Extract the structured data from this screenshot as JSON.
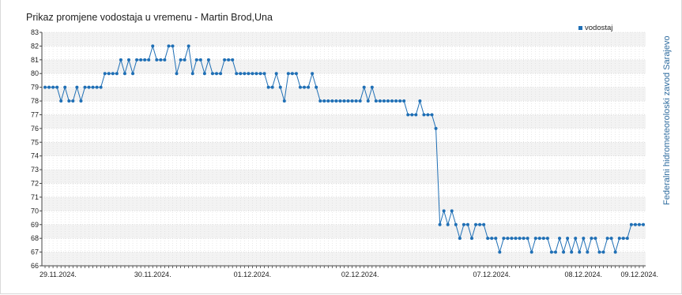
{
  "chart_data": {
    "type": "line",
    "title": "Prikaz promjene vodostaja u vremenu - Martin Brod,Una",
    "sidebar_text": "Federalni hidrometeoroloski zavod Sarajevo",
    "series": [
      {
        "name": "vodostaj",
        "color": "#1f6fb5",
        "values": [
          79,
          79,
          79,
          79,
          78,
          79,
          78,
          78,
          79,
          78,
          79,
          79,
          79,
          79,
          79,
          80,
          80,
          80,
          80,
          81,
          80,
          81,
          80,
          81,
          81,
          81,
          81,
          82,
          81,
          81,
          81,
          82,
          82,
          80,
          81,
          81,
          82,
          80,
          81,
          81,
          80,
          81,
          80,
          80,
          80,
          81,
          81,
          81,
          80,
          80,
          80,
          80,
          80,
          80,
          80,
          80,
          79,
          79,
          80,
          79,
          78,
          80,
          80,
          80,
          79,
          79,
          79,
          80,
          79,
          78,
          78,
          78,
          78,
          78,
          78,
          78,
          78,
          78,
          78,
          78,
          79,
          78,
          79,
          78,
          78,
          78,
          78,
          78,
          78,
          78,
          78,
          77,
          77,
          77,
          78,
          77,
          77,
          77,
          76,
          69,
          70,
          69,
          70,
          69,
          68,
          69,
          69,
          68,
          69,
          69,
          69,
          68,
          68,
          68,
          67,
          68,
          68,
          68,
          68,
          68,
          68,
          68,
          67,
          68,
          68,
          68,
          68,
          67,
          67,
          68,
          67,
          68,
          67,
          68,
          67,
          68,
          67,
          68,
          68,
          67,
          67,
          68,
          68,
          67,
          68,
          68,
          68,
          69,
          69,
          69,
          69
        ]
      }
    ],
    "x_labels": [
      "29.11.2024.",
      "30.11.2024.",
      "01.12.2024.",
      "02.12.2024.",
      "07.12.2024.",
      "08.12.2024.",
      "09.12.2024."
    ],
    "x_label_index": [
      0,
      27,
      52,
      79,
      112,
      135,
      157
    ],
    "y_ticks": [
      66,
      67,
      68,
      69,
      70,
      71,
      72,
      73,
      74,
      75,
      76,
      77,
      78,
      79,
      80,
      81,
      82,
      83
    ],
    "ylim": [
      66,
      83
    ],
    "xlabel": "",
    "ylabel": "",
    "grid": true,
    "legend": "top-right"
  }
}
